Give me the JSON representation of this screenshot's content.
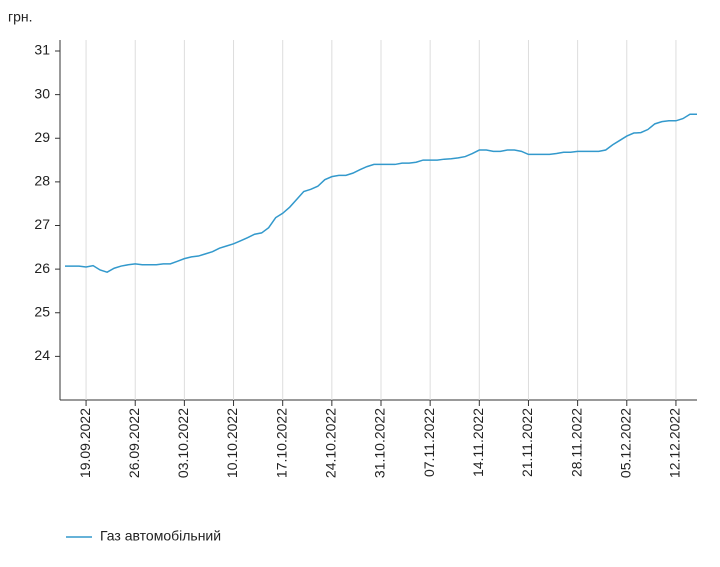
{
  "chart_data": {
    "type": "line",
    "y_label": "грн.",
    "categories": [
      null,
      null,
      null,
      "19.09.2022",
      null,
      null,
      null,
      null,
      null,
      null,
      "26.09.2022",
      null,
      null,
      null,
      null,
      null,
      null,
      "03.10.2022",
      null,
      null,
      null,
      null,
      null,
      null,
      "10.10.2022",
      null,
      null,
      null,
      null,
      null,
      null,
      "17.10.2022",
      null,
      null,
      null,
      null,
      null,
      null,
      "24.10.2022",
      null,
      null,
      null,
      null,
      null,
      null,
      "31.10.2022",
      null,
      null,
      null,
      null,
      null,
      null,
      "07.11.2022",
      null,
      null,
      null,
      null,
      null,
      null,
      "14.11.2022",
      null,
      null,
      null,
      null,
      null,
      null,
      "21.11.2022",
      null,
      null,
      null,
      null,
      null,
      null,
      "28.11.2022",
      null,
      null,
      null,
      null,
      null,
      null,
      "05.12.2022",
      null,
      null,
      null,
      null,
      null,
      null,
      "12.12.2022",
      null,
      null,
      null
    ],
    "series": [
      {
        "name": "Газ автомобільний",
        "color": "#3399cc",
        "values": [
          26.07,
          26.07,
          26.07,
          26.05,
          26.08,
          25.98,
          25.93,
          26.02,
          26.07,
          26.1,
          26.12,
          26.1,
          26.1,
          26.1,
          26.12,
          26.12,
          26.18,
          26.24,
          26.28,
          26.3,
          26.35,
          26.4,
          26.48,
          26.53,
          26.58,
          26.65,
          26.72,
          26.8,
          26.83,
          26.95,
          27.18,
          27.28,
          27.42,
          27.6,
          27.78,
          27.83,
          27.9,
          28.05,
          28.12,
          28.15,
          28.15,
          28.2,
          28.28,
          28.35,
          28.4,
          28.4,
          28.4,
          28.4,
          28.43,
          28.43,
          28.45,
          28.5,
          28.5,
          28.5,
          28.52,
          28.53,
          28.55,
          28.58,
          28.65,
          28.73,
          28.73,
          28.7,
          28.7,
          28.73,
          28.73,
          28.7,
          28.63,
          28.63,
          28.63,
          28.63,
          28.65,
          28.68,
          28.68,
          28.7,
          28.7,
          28.7,
          28.7,
          28.73,
          28.85,
          28.95,
          29.05,
          29.12,
          29.13,
          29.2,
          29.33,
          29.38,
          29.4,
          29.4,
          29.45,
          29.55,
          29.55
        ]
      }
    ],
    "ylim": [
      23,
      31
    ],
    "yticks": [
      24,
      25,
      26,
      27,
      28,
      29,
      30,
      31
    ],
    "grid": "x"
  }
}
